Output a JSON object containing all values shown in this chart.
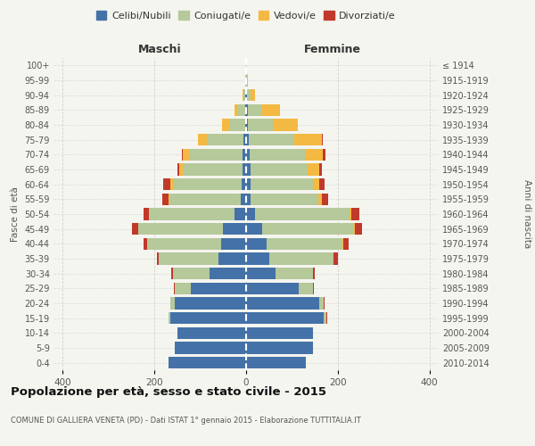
{
  "age_groups": [
    "0-4",
    "5-9",
    "10-14",
    "15-19",
    "20-24",
    "25-29",
    "30-34",
    "35-39",
    "40-44",
    "45-49",
    "50-54",
    "55-59",
    "60-64",
    "65-69",
    "70-74",
    "75-79",
    "80-84",
    "85-89",
    "90-94",
    "95-99",
    "100+"
  ],
  "birth_years": [
    "2010-2014",
    "2005-2009",
    "2000-2004",
    "1995-1999",
    "1990-1994",
    "1985-1989",
    "1980-1984",
    "1975-1979",
    "1970-1974",
    "1965-1969",
    "1960-1964",
    "1955-1959",
    "1950-1954",
    "1945-1949",
    "1940-1944",
    "1935-1939",
    "1930-1934",
    "1925-1929",
    "1920-1924",
    "1915-1919",
    "≤ 1914"
  ],
  "males": {
    "celibe": [
      170,
      155,
      150,
      165,
      155,
      120,
      80,
      60,
      55,
      50,
      25,
      12,
      10,
      8,
      8,
      5,
      2,
      2,
      1,
      0,
      0
    ],
    "coniugato": [
      0,
      0,
      0,
      5,
      10,
      35,
      80,
      130,
      160,
      185,
      185,
      155,
      150,
      130,
      115,
      80,
      35,
      15,
      4,
      1,
      0
    ],
    "vedovo": [
      0,
      0,
      0,
      0,
      0,
      0,
      0,
      0,
      1,
      1,
      2,
      3,
      5,
      8,
      15,
      20,
      15,
      8,
      2,
      0,
      0
    ],
    "divorziato": [
      0,
      0,
      0,
      0,
      1,
      2,
      3,
      5,
      8,
      12,
      12,
      12,
      15,
      3,
      2,
      0,
      0,
      0,
      0,
      0,
      0
    ]
  },
  "females": {
    "nubile": [
      130,
      145,
      145,
      170,
      160,
      115,
      65,
      50,
      45,
      35,
      20,
      10,
      10,
      10,
      8,
      5,
      3,
      3,
      2,
      0,
      0
    ],
    "coniugata": [
      0,
      0,
      0,
      5,
      10,
      30,
      80,
      140,
      165,
      200,
      205,
      148,
      135,
      125,
      120,
      100,
      55,
      30,
      8,
      2,
      0
    ],
    "vedova": [
      0,
      0,
      0,
      0,
      0,
      0,
      0,
      0,
      1,
      2,
      4,
      8,
      15,
      25,
      40,
      60,
      55,
      40,
      10,
      2,
      0
    ],
    "divorziata": [
      0,
      0,
      0,
      1,
      2,
      3,
      5,
      10,
      12,
      15,
      18,
      12,
      12,
      5,
      5,
      2,
      0,
      0,
      0,
      0,
      0
    ]
  },
  "colors": {
    "celibe": "#4472a8",
    "coniugato": "#b5c99a",
    "vedovo": "#f4b942",
    "divorziato": "#c0392b"
  },
  "legend_labels": [
    "Celibi/Nubili",
    "Coniugati/e",
    "Vedovi/e",
    "Divorziati/e"
  ],
  "title": "Popolazione per età, sesso e stato civile - 2015",
  "subtitle": "COMUNE DI GALLIERA VENETA (PD) - Dati ISTAT 1° gennaio 2015 - Elaborazione TUTTITALIA.IT",
  "xlabel_left": "Maschi",
  "xlabel_right": "Femmine",
  "ylabel_left": "Fasce di età",
  "ylabel_right": "Anni di nascita",
  "xlim": 420,
  "background_color": "#f5f5f0",
  "grid_color": "#cccccc"
}
